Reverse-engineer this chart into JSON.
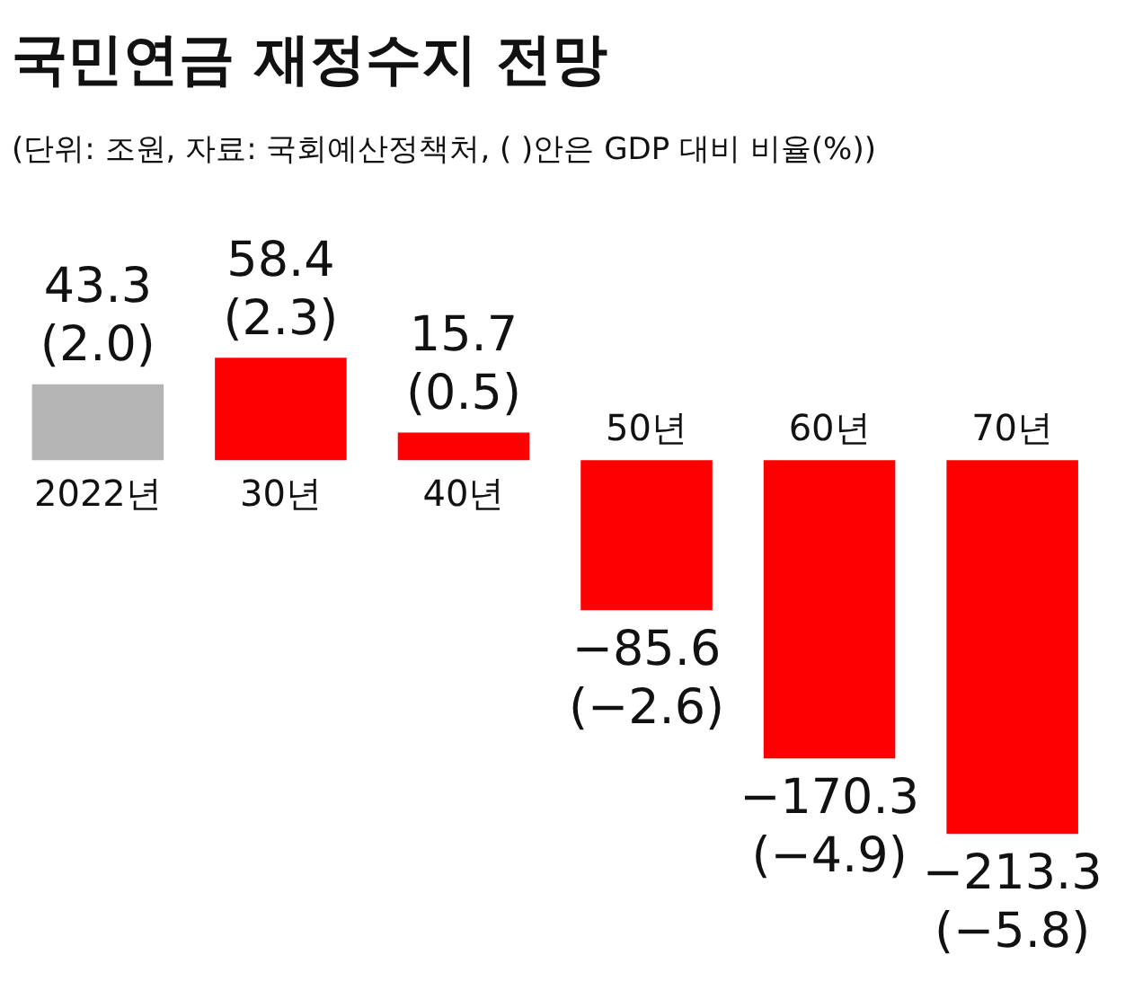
{
  "chart_data": {
    "type": "bar",
    "title": "국민연금 재정수지 전망",
    "subtitle": "(단위: 조원, 자료: 국회예산정책처, (    )안은 GDP 대비 비율(%))",
    "categories": [
      "2022년",
      "30년",
      "40년",
      "50년",
      "60년",
      "70년"
    ],
    "values": [
      43.3,
      58.4,
      15.7,
      -85.6,
      -170.3,
      -213.3
    ],
    "colors": [
      "#b4b4b4",
      "#ff0000",
      "#ff0000",
      "#ff0000",
      "#ff0000",
      "#ff0000"
    ],
    "value_labels": [
      "43.3\n(2.0)",
      "58.4\n(2.3)",
      "15.7\n(0.5)",
      "−85.6\n(−2.6)",
      "−170.3\n(−4.9)",
      "−213.3\n(−5.8)"
    ]
  }
}
